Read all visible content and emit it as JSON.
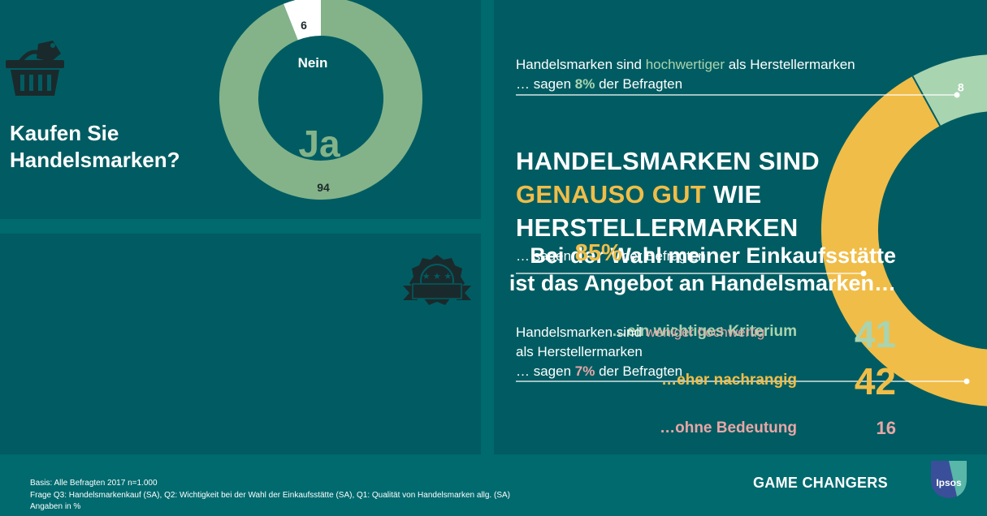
{
  "colors": {
    "background": "#006a6e",
    "panel": "#005c62",
    "green": "#84b389",
    "light_green": "#a9d4b0",
    "yellow": "#f0bd48",
    "pink": "#e8a6a6",
    "white": "#ffffff"
  },
  "icons": {
    "basket": "shopping-basket-icon",
    "badge": "rating-badge-icon",
    "logo": "ipsos-logo"
  },
  "q1": {
    "question": "Kaufen Sie Handelsmarken?",
    "ja_label": "Ja",
    "nein_label": "Nein"
  },
  "q2": {
    "question_line1": "Bei der Wahl meiner Einkaufsstätte",
    "question_line2": "ist das Angebot an Handelsmarken…",
    "rows": [
      {
        "label": "…ein wichtiges Kriterium",
        "value": "41"
      },
      {
        "label": "…eher nachrangig",
        "value": "42"
      },
      {
        "label": "…ohne Bedeutung",
        "value": "16"
      }
    ]
  },
  "q3": {
    "s1_line1_a": "Handelsmarken sind ",
    "s1_line1_hl": "hochwertiger",
    "s1_line1_b": " als Herstellermarken",
    "s1_line2_a": "… sagen ",
    "s1_line2_hl": "8%",
    "s1_line2_b": " der Befragten",
    "headline_l1": "HANDELSMARKEN SIND",
    "headline_l2_hl": "GENAUSO GUT",
    "headline_l2_b": " WIE",
    "headline_l3": "HERSTELLERMARKEN",
    "s2_a": "… sagen ",
    "s2_hl": "85%",
    "s2_b": "der Befragten",
    "s3_line1_a": "Handelsmarken sind ",
    "s3_line1_hl": "weniger hochwertig",
    "s3_line2": "als Herstellermarken",
    "s3_line3_a": "… sagen ",
    "s3_line3_hl": "7%",
    "s3_line3_b": " der Befragten"
  },
  "chart_data": [
    {
      "type": "pie",
      "variant": "donut",
      "title": "Kaufen Sie Handelsmarken?",
      "categories": [
        "Ja",
        "Nein"
      ],
      "values": [
        94,
        6
      ],
      "colors": [
        "#84b389",
        "#ffffff"
      ],
      "unit": "%"
    },
    {
      "type": "bar",
      "variant": "number-list",
      "title": "Bei der Wahl meiner Einkaufsstätte ist das Angebot an Handelsmarken…",
      "categories": [
        "…ein wichtiges Kriterium",
        "…eher nachrangig",
        "…ohne Bedeutung"
      ],
      "values": [
        41,
        42,
        16
      ],
      "colors": [
        "#a9d4b0",
        "#f0bd48",
        "#e8a6a6"
      ],
      "unit": "%"
    },
    {
      "type": "pie",
      "variant": "donut",
      "categories": [
        "hochwertiger",
        "genauso gut",
        "weniger hochwertig"
      ],
      "values": [
        8,
        85,
        7
      ],
      "colors": [
        "#a9d4b0",
        "#f0bd48",
        "#e8a6a6"
      ],
      "unit": "%"
    }
  ],
  "footer": {
    "line1": "Basis: Alle Befragten 2017 n=1.000",
    "line2": "Frage Q3: Handelsmarkenkauf (SA), Q2: Wichtigkeit bei der Wahl der Einkaufsstätte (SA), Q1: Qualität von Handelsmarken allg. (SA)",
    "line3": "Angaben in %",
    "brand": "GAME CHANGERS",
    "logo_text": "Ipsos"
  }
}
